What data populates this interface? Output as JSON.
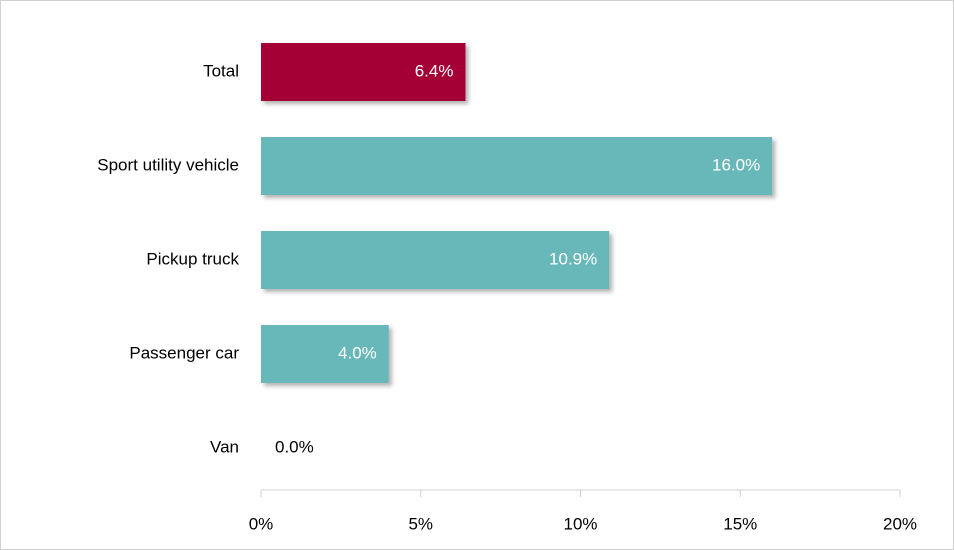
{
  "chart_data": {
    "type": "hbar",
    "categories": [
      "Total",
      "Sport utility vehicle",
      "Pickup truck",
      "Passenger car",
      "Van"
    ],
    "values": [
      6.4,
      16.0,
      10.9,
      4.0,
      0.0
    ],
    "value_labels": [
      "6.4%",
      "16.0%",
      "10.9%",
      "4.0%",
      "0.0%"
    ],
    "colors": [
      "#a50034",
      "#67b8b9",
      "#67b8b9",
      "#67b8b9",
      "#67b8b9"
    ],
    "xlim": [
      0,
      20
    ],
    "xticks": [
      {
        "value": 0,
        "label": "0%"
      },
      {
        "value": 5,
        "label": "5%"
      },
      {
        "value": 10,
        "label": "10%"
      },
      {
        "value": 15,
        "label": "15%"
      },
      {
        "value": 20,
        "label": "20%"
      }
    ],
    "grid": false
  }
}
